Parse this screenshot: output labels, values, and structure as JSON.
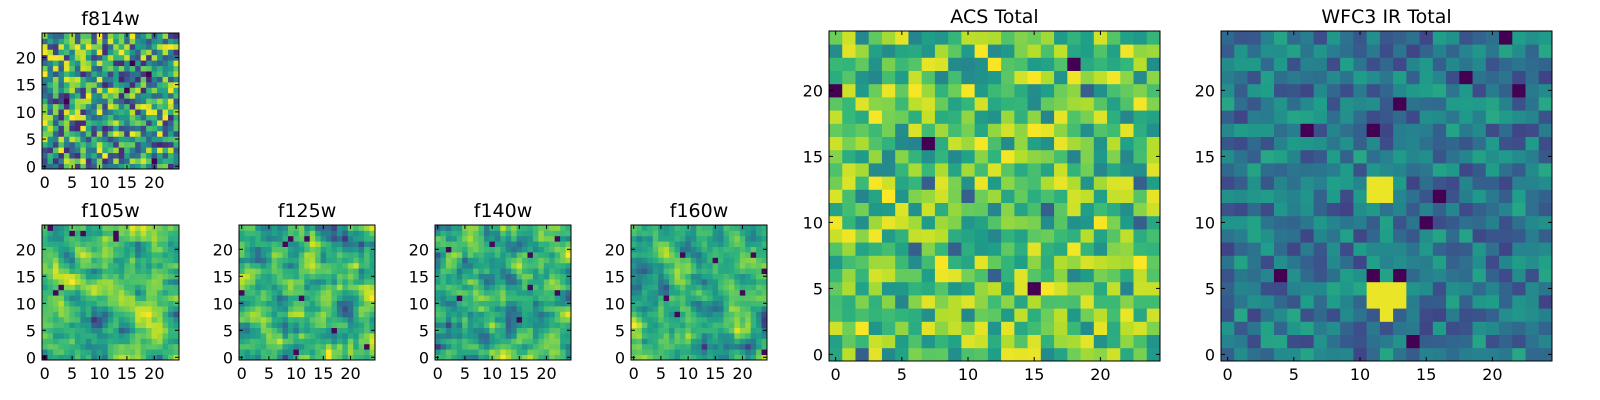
{
  "chart_data": [
    {
      "type": "heatmap",
      "title": "f814w",
      "seed": 11,
      "mode": "noise",
      "grid": 25,
      "xlim": [
        -0.5,
        24.5
      ],
      "ylim": [
        -0.5,
        24.5
      ],
      "xticks": [
        0,
        5,
        10,
        15,
        20
      ],
      "yticks": [
        0,
        5,
        10,
        15,
        20
      ],
      "colormap": "viridis",
      "grid_lines": false
    },
    {
      "type": "heatmap",
      "title": "f105w",
      "seed": 21,
      "mode": "smooth",
      "grid": 25,
      "xlim": [
        -0.5,
        24.5
      ],
      "ylim": [
        -0.5,
        24.5
      ],
      "xticks": [
        0,
        5,
        10,
        15,
        20
      ],
      "yticks": [
        0,
        5,
        10,
        15,
        20
      ],
      "colormap": "viridis",
      "grid_lines": false
    },
    {
      "type": "heatmap",
      "title": "f125w",
      "seed": 31,
      "mode": "smooth",
      "grid": 25,
      "xlim": [
        -0.5,
        24.5
      ],
      "ylim": [
        -0.5,
        24.5
      ],
      "xticks": [
        0,
        5,
        10,
        15,
        20
      ],
      "yticks": [
        0,
        5,
        10,
        15,
        20
      ],
      "colormap": "viridis",
      "grid_lines": false
    },
    {
      "type": "heatmap",
      "title": "f140w",
      "seed": 41,
      "mode": "smooth",
      "grid": 25,
      "xlim": [
        -0.5,
        24.5
      ],
      "ylim": [
        -0.5,
        24.5
      ],
      "xticks": [
        0,
        5,
        10,
        15,
        20
      ],
      "yticks": [
        0,
        5,
        10,
        15,
        20
      ],
      "colormap": "viridis",
      "grid_lines": false
    },
    {
      "type": "heatmap",
      "title": "f160w",
      "seed": 51,
      "mode": "smooth",
      "grid": 25,
      "xlim": [
        -0.5,
        24.5
      ],
      "ylim": [
        -0.5,
        24.5
      ],
      "xticks": [
        0,
        5,
        10,
        15,
        20
      ],
      "yticks": [
        0,
        5,
        10,
        15,
        20
      ],
      "colormap": "viridis",
      "grid_lines": false
    },
    {
      "type": "heatmap",
      "title": "ACS Total",
      "seed": 61,
      "mode": "bright",
      "grid": 25,
      "xlim": [
        -0.5,
        24.5
      ],
      "ylim": [
        -0.5,
        24.5
      ],
      "xticks": [
        0,
        5,
        10,
        15,
        20
      ],
      "yticks": [
        0,
        5,
        10,
        15,
        20
      ],
      "colormap": "viridis",
      "grid_lines": false
    },
    {
      "type": "heatmap",
      "title": "WFC3 IR Total",
      "seed": 71,
      "mode": "dark",
      "grid": 25,
      "xlim": [
        -0.5,
        24.5
      ],
      "ylim": [
        -0.5,
        24.5
      ],
      "xticks": [
        0,
        5,
        10,
        15,
        20
      ],
      "yticks": [
        0,
        5,
        10,
        15,
        20
      ],
      "colormap": "viridis",
      "grid_lines": false,
      "hotspots": [
        [
          11,
          12
        ],
        [
          11,
          13
        ],
        [
          12,
          12
        ],
        [
          12,
          13
        ],
        [
          11,
          4
        ],
        [
          11,
          5
        ],
        [
          12,
          4
        ],
        [
          12,
          5
        ],
        [
          13,
          4
        ],
        [
          13,
          5
        ],
        [
          12,
          3
        ]
      ]
    }
  ]
}
